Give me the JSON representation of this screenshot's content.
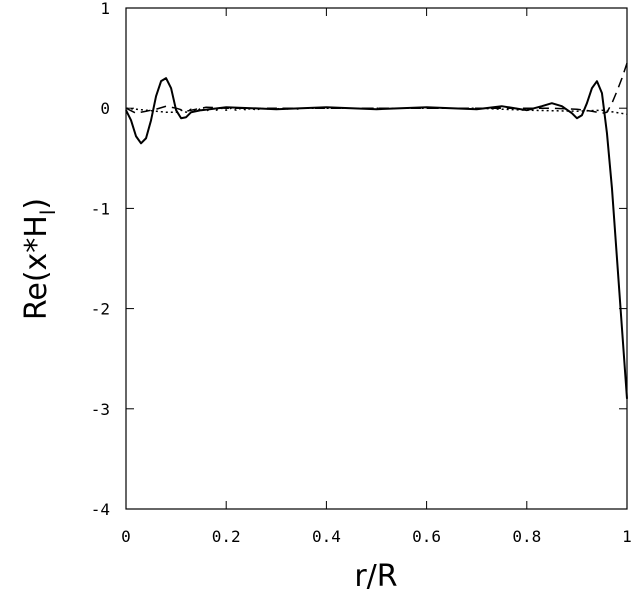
{
  "chart_data": {
    "type": "line",
    "xlabel": "r/R",
    "ylabel_main": "Re(x*H",
    "ylabel_sub": "l",
    "ylabel_close": ")",
    "xlim": [
      0,
      1
    ],
    "ylim": [
      -4,
      1
    ],
    "xticks": [
      0,
      0.2,
      0.4,
      0.6,
      0.8,
      1
    ],
    "xtick_labels": [
      "0",
      "0.2",
      "0.4",
      "0.6",
      "0.8",
      "1"
    ],
    "yticks": [
      1,
      0,
      -1,
      -2,
      -3,
      -4
    ],
    "ytick_labels": [
      "1",
      "0",
      "-1",
      "-2",
      "-3",
      "-4"
    ],
    "grid": false,
    "series": [
      {
        "style": "solid",
        "color": "#000000",
        "x": [
          0,
          0.01,
          0.02,
          0.03,
          0.04,
          0.05,
          0.06,
          0.07,
          0.08,
          0.09,
          0.1,
          0.11,
          0.12,
          0.13,
          0.15,
          0.2,
          0.3,
          0.4,
          0.5,
          0.6,
          0.7,
          0.75,
          0.8,
          0.83,
          0.85,
          0.87,
          0.89,
          0.9,
          0.91,
          0.92,
          0.93,
          0.94,
          0.95,
          0.96,
          0.97,
          0.98,
          0.99,
          1.0
        ],
        "y": [
          -0.02,
          -0.12,
          -0.28,
          -0.35,
          -0.3,
          -0.12,
          0.12,
          0.27,
          0.3,
          0.2,
          -0.02,
          -0.1,
          -0.09,
          -0.04,
          -0.02,
          0.01,
          -0.01,
          0.01,
          -0.01,
          0.01,
          -0.01,
          0.02,
          -0.02,
          0.02,
          0.05,
          0.02,
          -0.05,
          -0.1,
          -0.07,
          0.05,
          0.2,
          0.27,
          0.15,
          -0.25,
          -0.8,
          -1.5,
          -2.2,
          -2.9
        ]
      },
      {
        "style": "dashed",
        "color": "#000000",
        "x": [
          0,
          0.02,
          0.04,
          0.06,
          0.08,
          0.1,
          0.12,
          0.14,
          0.16,
          0.2,
          0.3,
          0.4,
          0.5,
          0.6,
          0.7,
          0.8,
          0.85,
          0.9,
          0.93,
          0.95,
          0.96,
          0.97,
          0.98,
          0.99,
          1.0
        ],
        "y": [
          0.0,
          -0.05,
          -0.03,
          -0.01,
          0.02,
          0.0,
          -0.03,
          -0.01,
          0.01,
          0.0,
          0.0,
          0.0,
          0.0,
          0.0,
          0.0,
          0.0,
          0.0,
          -0.01,
          -0.03,
          -0.05,
          -0.04,
          0.05,
          0.17,
          0.3,
          0.45
        ]
      },
      {
        "style": "dotted",
        "color": "#000000",
        "x": [
          0,
          0.02,
          0.04,
          0.06,
          0.08,
          0.1,
          0.11,
          0.12,
          0.13,
          0.14,
          0.15,
          0.16,
          0.17,
          0.18,
          0.19,
          0.2,
          0.21,
          0.22,
          0.23,
          0.24,
          0.25,
          0.26,
          0.27,
          0.28,
          0.29,
          0.3,
          0.31,
          0.32,
          0.33,
          0.34,
          0.35,
          0.4,
          0.5,
          0.6,
          0.7,
          0.8,
          0.9,
          0.95,
          1.0
        ],
        "y": [
          0.0,
          -0.01,
          -0.02,
          -0.03,
          -0.04,
          -0.04,
          -0.02,
          -0.04,
          -0.01,
          -0.03,
          0.0,
          -0.03,
          0.0,
          -0.02,
          0.0,
          -0.02,
          0.0,
          -0.02,
          0.0,
          -0.02,
          0.0,
          -0.02,
          0.0,
          -0.01,
          0.0,
          -0.01,
          0.0,
          -0.01,
          0.0,
          -0.01,
          0.0,
          0.0,
          0.0,
          0.0,
          0.0,
          -0.02,
          -0.03,
          -0.02,
          -0.06
        ]
      }
    ]
  }
}
